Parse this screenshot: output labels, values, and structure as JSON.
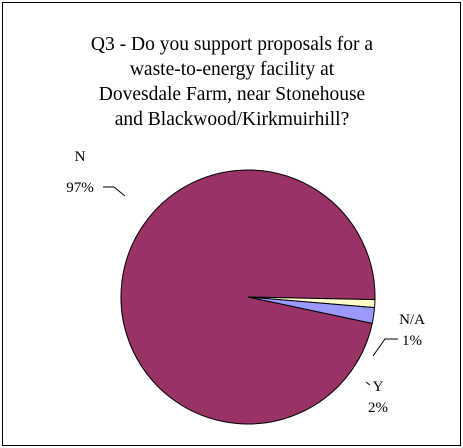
{
  "chart_data": {
    "type": "pie",
    "title_lines": [
      "Q3 - Do you support proposals for a",
      "waste-to-energy facility at",
      "Dovesdale Farm, near Stonehouse",
      "and Blackwood/Kirkmuirhill?"
    ],
    "slices": [
      {
        "label": "N",
        "value": 97,
        "value_text": "97%",
        "color": "#993366"
      },
      {
        "label": "N/A",
        "value": 1,
        "value_text": "1%",
        "color": "#ffffcc"
      },
      {
        "label": "Y",
        "value": 2,
        "value_text": "2%",
        "color": "#9999ff"
      }
    ],
    "legend": "none",
    "edge_color": "#000000"
  }
}
